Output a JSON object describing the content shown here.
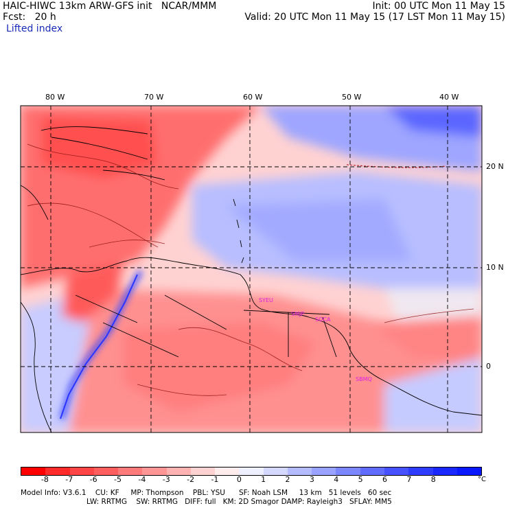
{
  "header": {
    "left_line1": "HAIC-HIWC 13km ARW-GFS init   NCAR/MMM",
    "left_line2": "Fcst:   20 h",
    "left_line3": "Lifted index",
    "right_line1": "Init: 00 UTC Mon 11 May 15",
    "right_line2": "Valid: 20 UTC Mon 11 May 15 (17 LST Mon 11 May 15)"
  },
  "map": {
    "lon_labels": [
      "80 W",
      "70 W",
      "60 W",
      "50 W",
      "40 W"
    ],
    "lat_labels": [
      "20 N",
      "10 N",
      "0"
    ],
    "city_labels": [
      "SYEU",
      "SMJP",
      "SOCA",
      "SBMQ"
    ],
    "field_name": "Lifted index"
  },
  "colorbar": {
    "colors": [
      "#ff0000",
      "#ff2a2a",
      "#ff4545",
      "#ff5e5e",
      "#ff7a7a",
      "#ff9696",
      "#ffb2b2",
      "#ffd2d2",
      "#ffecec",
      "#eef0ff",
      "#d4d8ff",
      "#b4bcff",
      "#9aa2ff",
      "#7c86ff",
      "#606cff",
      "#4652ff",
      "#2e3cff",
      "#1828ff",
      "#0a18ff"
    ],
    "ticks": [
      "-8",
      "-7",
      "-6",
      "-5",
      "-4",
      "-3",
      "-2",
      "-1",
      "0",
      "1",
      "2",
      "3",
      "4",
      "5",
      "6",
      "7",
      "8"
    ],
    "unit": "°C"
  },
  "footer": {
    "line1": "Model Info: V3.6.1    CU: KF     MP: Thompson    PBL: YSU      SF: Noah LSM     13 km   51 levels   60 sec",
    "line2": "LW: RRTMG    SW: RRTMG   DIFF: full   KM: 2D Smagor DAMP: Rayleigh3   SFLAY: MM5"
  }
}
